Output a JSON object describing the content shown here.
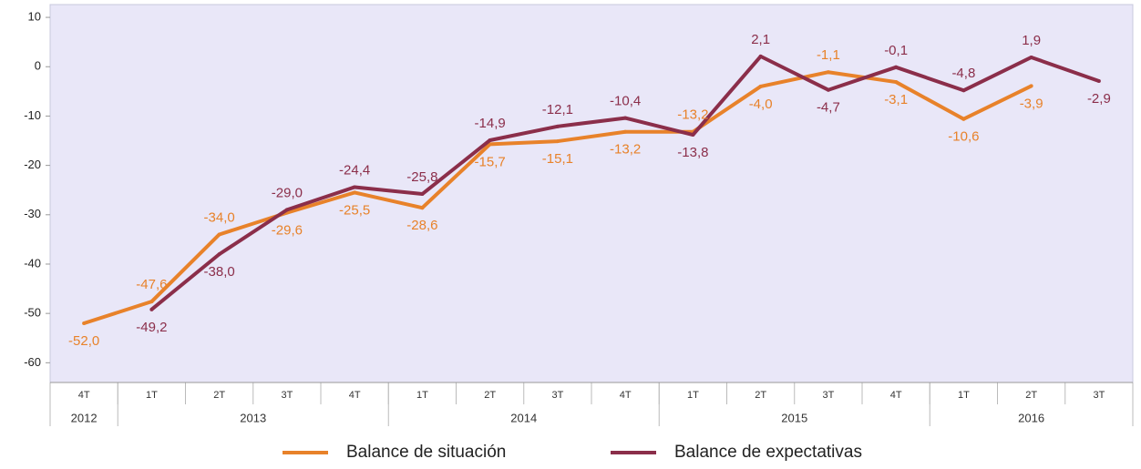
{
  "chart_data": {
    "type": "line",
    "categories": [
      "4T",
      "1T",
      "2T",
      "3T",
      "4T",
      "1T",
      "2T",
      "3T",
      "4T",
      "1T",
      "2T",
      "3T",
      "4T",
      "1T",
      "2T",
      "3T"
    ],
    "category_groups": [
      {
        "name": "2012",
        "count": 1
      },
      {
        "name": "2013",
        "count": 4
      },
      {
        "name": "2014",
        "count": 4
      },
      {
        "name": "2015",
        "count": 4
      },
      {
        "name": "2016",
        "count": 3
      }
    ],
    "series": [
      {
        "name": "Balance de situación",
        "color": "#e8822a",
        "values": [
          -52.0,
          -47.6,
          -34.0,
          -29.6,
          -25.5,
          -28.6,
          -15.7,
          -15.1,
          -13.2,
          -13.2,
          -4.0,
          -1.1,
          -3.1,
          -10.6,
          -3.9,
          null
        ],
        "value_labels": [
          "-52,0",
          "-47,6",
          "-34,0",
          "-29,6",
          "-25,5",
          "-28,6",
          "-15,7",
          "-15,1",
          "-13,2",
          "-13,2",
          "-4,0",
          "-1,1",
          "-3,1",
          "-10,6",
          "-3,9",
          null
        ]
      },
      {
        "name": "Balance de expectativas",
        "color": "#8b2e4a",
        "values": [
          null,
          -49.2,
          -38.0,
          -29.0,
          -24.4,
          -25.8,
          -14.9,
          -12.1,
          -10.4,
          -13.8,
          2.1,
          -4.7,
          -0.1,
          -4.8,
          1.9,
          -2.9
        ],
        "value_labels": [
          null,
          "-49,2",
          "-38,0",
          "-29,0",
          "-24,4",
          "-25,8",
          "-14,9",
          "-12,1",
          "-10,4",
          "-13,8",
          "2,1",
          "-4,7",
          "-0,1",
          "-4,8",
          "1,9",
          "-2,9"
        ]
      }
    ],
    "ylim": [
      -64,
      12.6
    ],
    "yticks": [
      10,
      0,
      -10,
      -20,
      -30,
      -40,
      -50,
      -60
    ],
    "background": "#e9e7f8"
  }
}
